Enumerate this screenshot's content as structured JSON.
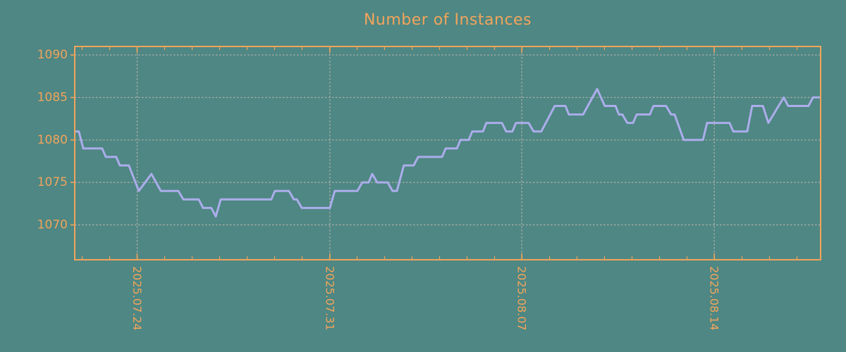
{
  "chart_data": {
    "type": "line",
    "title": "Number of Instances",
    "xlabel": "",
    "ylabel": "",
    "x_unit": "days from left edge of plot (daily samples)",
    "xlim": [
      0,
      27.13
    ],
    "ylim": [
      1065.9,
      1091.0
    ],
    "y_ticks": [
      1070,
      1075,
      1080,
      1085,
      1090
    ],
    "x_ticks": [
      {
        "t": 2.27,
        "label": "2025.07.24"
      },
      {
        "t": 9.28,
        "label": "2025.07.31"
      },
      {
        "t": 16.26,
        "label": "2025.08.07"
      },
      {
        "t": 23.26,
        "label": "2025.08.14"
      }
    ],
    "x_minor_ticks": {
      "start": 0.27,
      "step": 1,
      "count": 27
    },
    "grid": true,
    "legend": "none",
    "series": [
      {
        "name": "instances",
        "points": [
          [
            0.0,
            1081
          ],
          [
            0.15,
            1081
          ],
          [
            0.31,
            1079
          ],
          [
            1.0,
            1079
          ],
          [
            1.13,
            1078
          ],
          [
            1.51,
            1078
          ],
          [
            1.64,
            1077
          ],
          [
            1.97,
            1077
          ],
          [
            2.33,
            1074
          ],
          [
            2.79,
            1076
          ],
          [
            3.13,
            1074
          ],
          [
            3.77,
            1074
          ],
          [
            3.95,
            1073
          ],
          [
            4.51,
            1073
          ],
          [
            4.67,
            1072
          ],
          [
            4.97,
            1072
          ],
          [
            5.13,
            1071
          ],
          [
            5.31,
            1073
          ],
          [
            7.15,
            1073
          ],
          [
            7.28,
            1074
          ],
          [
            7.79,
            1074
          ],
          [
            7.97,
            1073
          ],
          [
            8.08,
            1073
          ],
          [
            8.26,
            1072
          ],
          [
            9.28,
            1072
          ],
          [
            9.46,
            1074
          ],
          [
            10.28,
            1074
          ],
          [
            10.46,
            1075
          ],
          [
            10.69,
            1075
          ],
          [
            10.82,
            1076
          ],
          [
            11.0,
            1075
          ],
          [
            11.38,
            1075
          ],
          [
            11.56,
            1074
          ],
          [
            11.72,
            1074
          ],
          [
            11.97,
            1077
          ],
          [
            12.33,
            1077
          ],
          [
            12.49,
            1078
          ],
          [
            13.36,
            1078
          ],
          [
            13.49,
            1079
          ],
          [
            13.9,
            1079
          ],
          [
            14.03,
            1080
          ],
          [
            14.33,
            1080
          ],
          [
            14.46,
            1081
          ],
          [
            14.85,
            1081
          ],
          [
            14.97,
            1082
          ],
          [
            15.54,
            1082
          ],
          [
            15.69,
            1081
          ],
          [
            15.92,
            1081
          ],
          [
            16.05,
            1082
          ],
          [
            16.51,
            1082
          ],
          [
            16.69,
            1081
          ],
          [
            16.97,
            1081
          ],
          [
            17.46,
            1084
          ],
          [
            17.85,
            1084
          ],
          [
            17.97,
            1083
          ],
          [
            18.49,
            1083
          ],
          [
            19.0,
            1086
          ],
          [
            19.28,
            1084
          ],
          [
            19.67,
            1084
          ],
          [
            19.79,
            1083
          ],
          [
            19.92,
            1083
          ],
          [
            20.1,
            1082
          ],
          [
            20.31,
            1082
          ],
          [
            20.44,
            1083
          ],
          [
            20.92,
            1083
          ],
          [
            21.05,
            1084
          ],
          [
            21.51,
            1084
          ],
          [
            21.69,
            1083
          ],
          [
            21.82,
            1083
          ],
          [
            22.15,
            1080
          ],
          [
            22.85,
            1080
          ],
          [
            23.0,
            1082
          ],
          [
            23.82,
            1082
          ],
          [
            23.95,
            1081
          ],
          [
            24.46,
            1081
          ],
          [
            24.64,
            1084
          ],
          [
            25.03,
            1084
          ],
          [
            25.23,
            1082
          ],
          [
            25.79,
            1085
          ],
          [
            25.95,
            1084
          ],
          [
            26.69,
            1084
          ],
          [
            26.85,
            1085
          ],
          [
            27.13,
            1085
          ]
        ]
      }
    ],
    "colors": {
      "background": "#4E8783",
      "accent": "#F1A45C",
      "line": "#ABADEB",
      "grid": "#B1AEAC"
    }
  }
}
